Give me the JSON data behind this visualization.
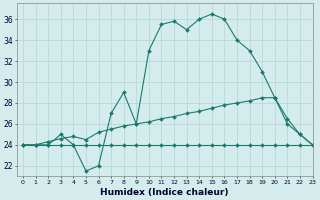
{
  "xlabel": "Humidex (Indice chaleur)",
  "bg_color": "#d4ecec",
  "grid_color": "#c0dada",
  "line_color": "#1a7a6e",
  "line1_x": [
    0,
    1,
    2,
    3,
    4,
    5,
    6,
    7,
    8,
    9,
    10,
    11,
    12,
    13,
    14,
    15,
    16,
    17,
    18,
    19,
    20,
    21,
    22,
    23
  ],
  "line1_y": [
    24,
    24,
    24,
    25,
    24,
    21.5,
    22,
    27,
    29,
    26,
    33,
    35.5,
    35.8,
    35,
    36,
    36.5,
    36,
    34,
    33,
    31,
    28.5,
    26,
    25,
    24
  ],
  "line2_x": [
    0,
    1,
    2,
    3,
    4,
    5,
    6,
    7,
    8,
    9,
    10,
    11,
    12,
    13,
    14,
    15,
    16,
    17,
    18,
    19,
    20,
    21,
    22,
    23
  ],
  "line2_y": [
    24,
    24,
    24,
    24,
    24,
    24,
    24,
    24,
    24,
    24,
    24,
    24,
    24,
    24,
    24,
    24,
    24,
    24,
    24,
    24,
    24,
    24,
    24,
    24
  ],
  "line3_x": [
    0,
    1,
    2,
    3,
    4,
    5,
    6,
    7,
    8,
    9,
    10,
    11,
    12,
    13,
    14,
    15,
    16,
    17,
    18,
    19,
    20,
    21,
    22,
    23
  ],
  "line3_y": [
    24,
    24,
    24.3,
    24.6,
    24.8,
    24.5,
    25.2,
    25.5,
    25.8,
    26.0,
    26.2,
    26.5,
    26.7,
    27.0,
    27.2,
    27.5,
    27.8,
    28.0,
    28.2,
    28.5,
    28.5,
    26.5,
    25,
    24
  ],
  "xlim": [
    -0.5,
    23
  ],
  "ylim": [
    21.0,
    37.5
  ],
  "yticks": [
    22,
    24,
    26,
    28,
    30,
    32,
    34,
    36
  ],
  "xticks": [
    0,
    1,
    2,
    3,
    4,
    5,
    6,
    7,
    8,
    9,
    10,
    11,
    12,
    13,
    14,
    15,
    16,
    17,
    18,
    19,
    20,
    21,
    22,
    23
  ]
}
